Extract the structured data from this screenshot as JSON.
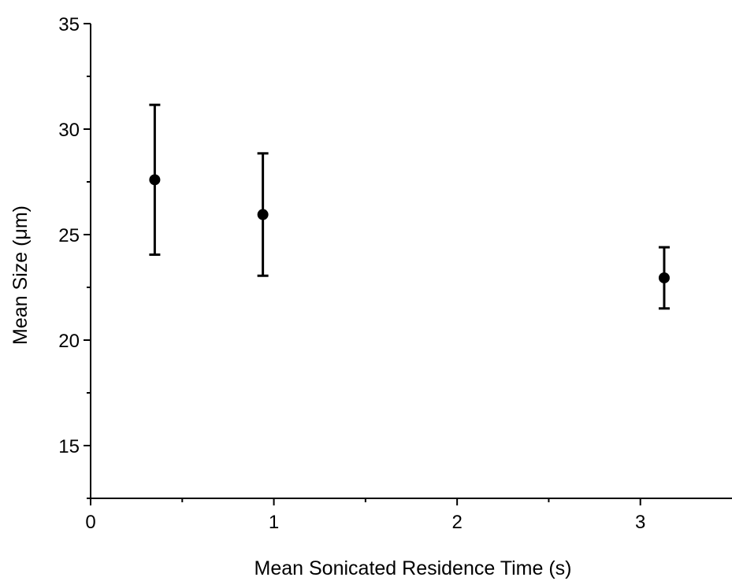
{
  "chart_data": {
    "type": "scatter",
    "xlabel": "Mean Sonicated Residence Time (s)",
    "ylabel": "Mean Size (μm)",
    "xlim": [
      0,
      3.5
    ],
    "ylim": [
      12.5,
      35
    ],
    "x_ticks": [
      0,
      1,
      2,
      3
    ],
    "x_minor_ticks": [
      0.5,
      1.5,
      2.5
    ],
    "y_ticks": [
      15,
      20,
      25,
      30,
      35
    ],
    "y_minor_ticks": [
      12.5,
      17.5,
      22.5,
      27.5,
      32.5
    ],
    "grid": false,
    "marker": "filled-circle",
    "color": "#000000",
    "points": [
      {
        "x": 0.35,
        "y": 27.6,
        "y_err_low": 24.05,
        "y_err_high": 31.15
      },
      {
        "x": 0.94,
        "y": 25.95,
        "y_err_low": 23.05,
        "y_err_high": 28.85
      },
      {
        "x": 3.13,
        "y": 22.95,
        "y_err_low": 21.5,
        "y_err_high": 24.4
      }
    ]
  }
}
